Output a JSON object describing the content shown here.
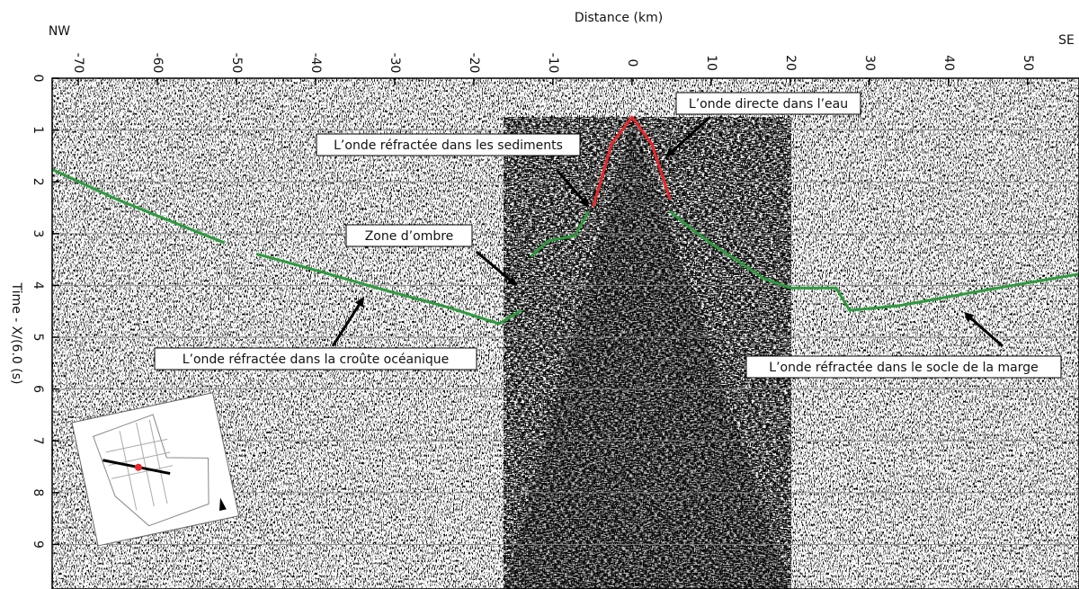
{
  "chart_data": {
    "type": "line",
    "title": "Distance (km)",
    "left_label": "NW",
    "right_label": "SE",
    "y_label": "Time - X/(6.0 (s)",
    "xlim": [
      -73.3,
      56.5
    ],
    "ylim": [
      0,
      9.86
    ],
    "xticks": [
      -70,
      -60,
      -50,
      -40,
      -30,
      -20,
      -10,
      0,
      10,
      20,
      30,
      40,
      50
    ],
    "yticks": [
      0,
      1,
      2,
      3,
      4,
      5,
      6,
      7,
      8,
      9
    ],
    "grid": true,
    "series": [
      {
        "color": "#2e9a3e",
        "x": [
          -73.3,
          -65.1,
          -51.5,
          null,
          -47.5,
          -40.1,
          -32.2,
          -23.1,
          -16.8,
          -14,
          null,
          -12.8,
          -10.6,
          -7.2,
          -5.5,
          null,
          4.8,
          7.6,
          9.9,
          13.3,
          16.7,
          20.1,
          25.8,
          27.5,
          33.8,
          45.1,
          56.5
        ],
        "values": [
          1.76,
          2.34,
          3.18,
          null,
          3.39,
          3.7,
          4.05,
          4.43,
          4.74,
          4.48,
          null,
          3.44,
          3.14,
          3.04,
          2.57,
          null,
          2.57,
          2.92,
          3.18,
          3.52,
          3.87,
          4.05,
          4.05,
          4.48,
          4.39,
          4.08,
          3.78
        ]
      },
      {
        "color": "#e8262b",
        "x": [
          -4.9,
          -2.6,
          0,
          2.5,
          4.8
        ],
        "values": [
          2.48,
          1.27,
          0.75,
          1.27,
          2.34
        ]
      }
    ],
    "annotations": [
      "L’onde directe dans l’eau",
      "L’onde réfractée dans les sediments",
      "Zone d’ombre",
      "L’onde réfractée dans la croûte océanique",
      "L’onde réfractée dans le socle de la marge"
    ]
  }
}
